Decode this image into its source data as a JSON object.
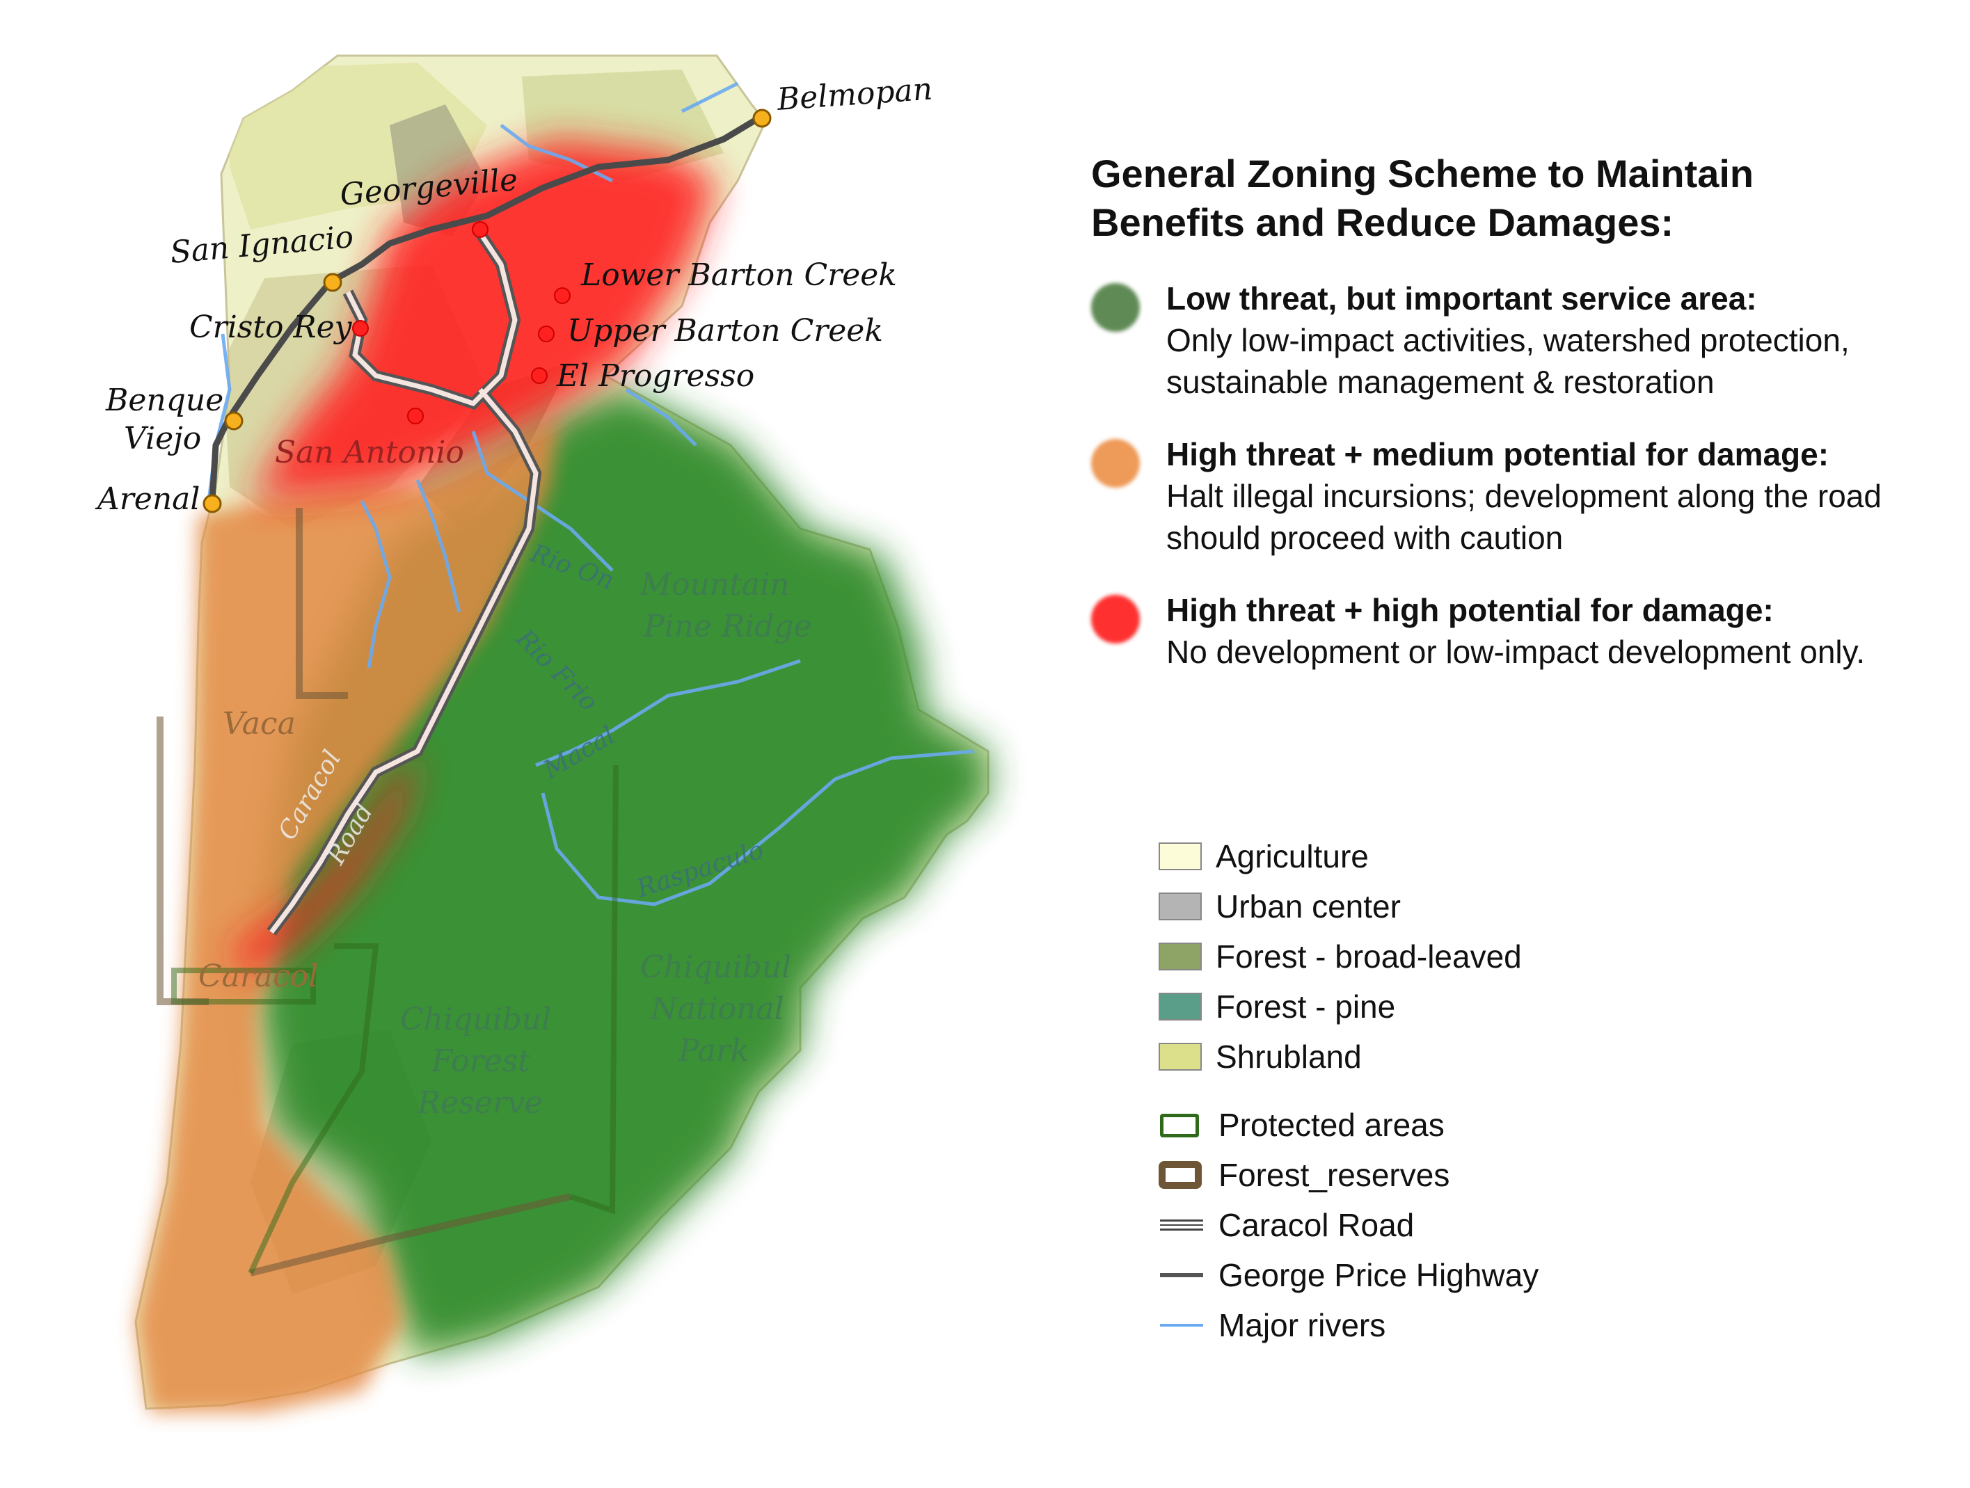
{
  "title": "General Zoning Scheme to Maintain Benefits and Reduce Damages:",
  "zones": [
    {
      "color": "#5f8a55",
      "title": "Low threat, but important service area:",
      "desc": "Only low-impact activities, watershed protection, sustainable management & restoration"
    },
    {
      "color": "#ee9a58",
      "title": "High threat + medium potential for damage:",
      "desc": "Halt illegal incursions; development along the road should proceed with caution"
    },
    {
      "color": "#ff3030",
      "title": "High threat + high potential for damage:",
      "desc": "No development or low-impact development only."
    }
  ],
  "legend": {
    "landcover": [
      {
        "label": "Agriculture",
        "color": "#fcfcd8"
      },
      {
        "label": "Urban center",
        "color": "#b4b4b4"
      },
      {
        "label": "Forest - broad-leaved",
        "color": "#8ea466"
      },
      {
        "label": "Forest - pine",
        "color": "#5a9e8a"
      },
      {
        "label": "Shrubland",
        "color": "#dde08a"
      }
    ],
    "lines": [
      {
        "label": "Protected areas",
        "style": "protected",
        "color": "#2f6a1a"
      },
      {
        "label": "Forest_reserves",
        "style": "reserve",
        "color": "#6e5536"
      },
      {
        "label": "Caracol Road",
        "style": "road",
        "color": "#444444"
      },
      {
        "label": "George Price Highway",
        "style": "highway",
        "color": "#555555"
      },
      {
        "label": "Major rivers",
        "style": "river",
        "color": "#6aaaf0"
      }
    ]
  },
  "places": {
    "belmopan": "Belmopan",
    "georgeville": "Georgeville",
    "san_ignacio": "San Ignacio",
    "cristo_rey": "Cristo Rey",
    "benque": "Benque",
    "viejo": "Viejo",
    "arenal": "Arenal",
    "lower_barton": "Lower Barton Creek",
    "upper_barton": "Upper Barton Creek",
    "el_progresso": "El Progresso",
    "san_antonio": "San Antonio"
  },
  "areas": {
    "mpr_1": "Mountain",
    "mpr_2": "Pine Ridge",
    "vaca": "Vaca",
    "caracol": "Caracol",
    "cfr_1": "Chiquibul",
    "cfr_2": "Forest",
    "cfr_3": "Reserve",
    "cnp_1": "Chiquibul",
    "cnp_2": "National",
    "cnp_3": "Park",
    "caracol_road_1": "Caracol",
    "caracol_road_2": "Road"
  },
  "rivers": {
    "rio_on": "Rio On",
    "rio_frio": "Rio Frio",
    "macal": "Macal",
    "raspaculo": "Raspaculo"
  }
}
